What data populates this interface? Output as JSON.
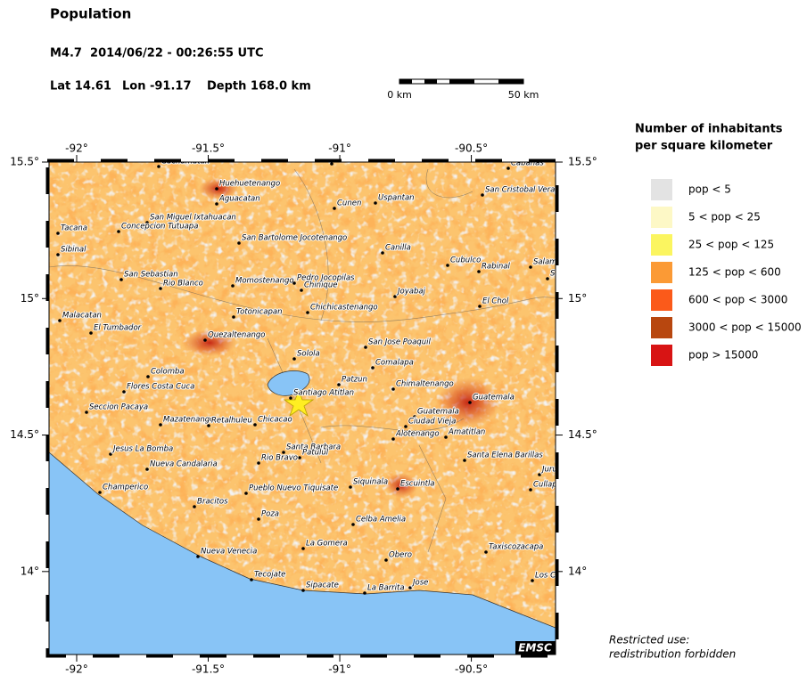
{
  "header": {
    "title": "Population",
    "event": "M4.7  2014/06/22 - 00:26:55 UTC",
    "lat": "Lat 14.61",
    "lon": "Lon -91.17",
    "depth": "Depth 168.0 km"
  },
  "scale_bar": {
    "start": "0 km",
    "end": "50 km"
  },
  "map": {
    "xlim": [
      -92.105,
      -90.18
    ],
    "ylim": [
      13.696,
      15.5
    ],
    "xticks": [
      {
        "value": -92,
        "label": "-92°"
      },
      {
        "value": -91.5,
        "label": "-91.5°"
      },
      {
        "value": -91,
        "label": "-91°"
      },
      {
        "value": -90.5,
        "label": "-90.5°"
      }
    ],
    "yticks": [
      {
        "value": 15.5,
        "label": "15.5°"
      },
      {
        "value": 15,
        "label": "15°"
      },
      {
        "value": 14.5,
        "label": "14.5°"
      },
      {
        "value": 14,
        "label": "14°"
      }
    ],
    "places": [
      "Cuchumatan",
      "Chajul",
      "Cabañas",
      "Aguacatan",
      "Huehuetenango",
      "Cunen",
      "Uspantan",
      "San Cristobal Verapaz",
      "San Miguel Ixtahuacan",
      "Concepcion Tutuapa",
      "Tacana",
      "San Bartolome Jocotenango",
      "Canilla",
      "Sibinal",
      "Cubulco",
      "Rabinal",
      "Salama",
      "San Sebastian",
      "Rio Blanco",
      "Momostenango",
      "Pedro Jocopilas",
      "Chinique",
      "Joyabaj",
      "San",
      "Malacatan",
      "Chichicastenango",
      "El Chol",
      "Totonicapan",
      "El Tumbador",
      "San Jose Poaquil",
      "Quezaltenango",
      "Solola",
      "Comalapa",
      "Colomba",
      "Patzun",
      "Chimaltenango",
      "Flores Costa Cuca",
      "Santiago Atitlan",
      "Guatemala",
      "Seccion Pacaya",
      "Guatemala",
      "Mazatenango",
      "Retalhuleu",
      "Chicacao",
      "Ciudad Vieja",
      "Alotenango",
      "Amatitlan",
      "Jesus La Bomba",
      "Santa Barbara",
      "Patulul",
      "Rio Bravo",
      "Santa Elena Barillas",
      "Nueva Candalaria",
      "Jurun",
      "Siquinala",
      "Escuintla",
      "Champerico",
      "Pueblo Nuevo Tiquisate",
      "Cullapa",
      "Bracitos",
      "Poza",
      "Celba Amelia",
      "Taxiscozacapa",
      "La Gomera",
      "Nueva Venecia",
      "Obero",
      "Tecojate",
      "Los Cerros",
      "Sipacate",
      "La Barrita",
      "Jose"
    ],
    "logo": "EMSC"
  },
  "legend": {
    "title": [
      "Number of inhabitants",
      "per square kilometer"
    ],
    "items": [
      {
        "label": "pop < 5",
        "color": "#e3e3e3"
      },
      {
        "label": "5 < pop < 25",
        "color": "#fdf8c6"
      },
      {
        "label": "25 < pop < 125",
        "color": "#fbf560"
      },
      {
        "label": "125 < pop < 600",
        "color": "#fb9a35"
      },
      {
        "label": "600 < pop < 3000",
        "color": "#fb5a1a"
      },
      {
        "label": "3000 < pop < 15000",
        "color": "#b8470f"
      },
      {
        "label": "pop > 15000",
        "color": "#d81414"
      }
    ]
  },
  "note": [
    "Restricted use:",
    "redistribution forbidden"
  ]
}
